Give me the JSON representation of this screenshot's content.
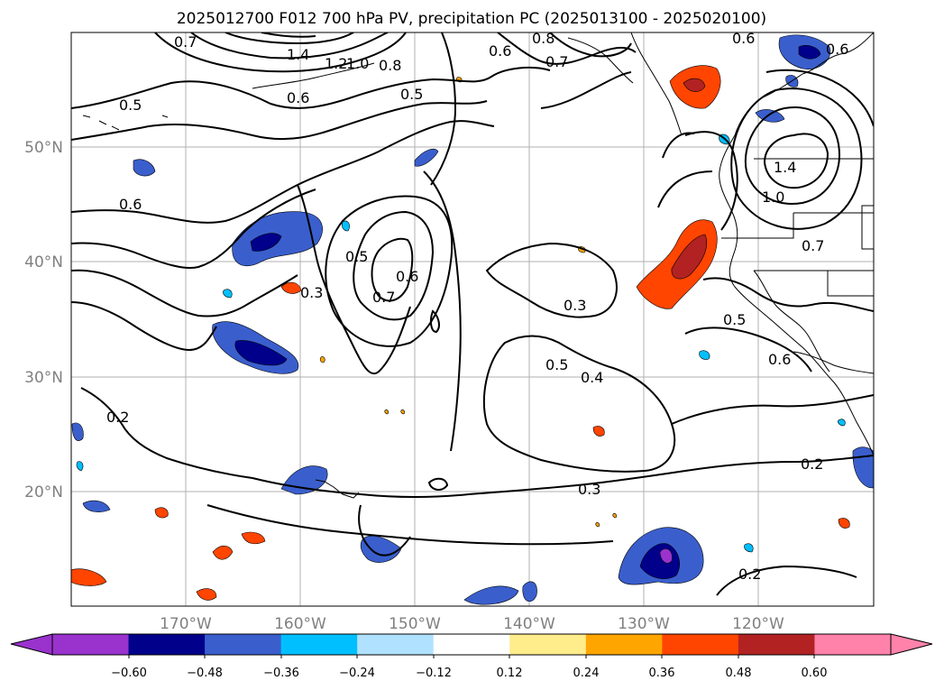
{
  "map": {
    "title": "2025012700 F012 700 hPa PV, precipitation PC (2025013100 - 2025020100)",
    "lon_labels": [
      "170°W",
      "160°W",
      "150°W",
      "140°W",
      "130°W",
      "120°W"
    ],
    "lat_labels": [
      "50°N",
      "40°N",
      "30°N",
      "20°N"
    ],
    "contour_labels": [
      "0.7",
      "1.4",
      "1.2",
      "1.0",
      "0.8",
      "0.6",
      "0.5",
      "0.6",
      "0.8",
      "0.7",
      "0.6",
      "0.6",
      "0.5",
      "0.6",
      "0.3",
      "0.5",
      "0.7",
      "0.6",
      "0.3",
      "0.5",
      "0.4",
      "0.2",
      "0.3",
      "0.5",
      "0.6",
      "1.4",
      "1.0",
      "0.7",
      "0.2",
      "0.2"
    ],
    "colors": {
      "pv_contour": "#000000",
      "grid": "#b0b0b0",
      "coastline": "#000000"
    }
  },
  "colorbar": {
    "ticks": [
      "−0.60",
      "−0.48",
      "−0.36",
      "−0.24",
      "−0.12",
      "0.12",
      "0.24",
      "0.36",
      "0.48",
      "0.60"
    ],
    "colors": [
      "#9a32cd",
      "#00008b",
      "#3a5fcd",
      "#00bfff",
      "#b0e2ff",
      "#ffffff",
      "#ffec8b",
      "#ffa500",
      "#ff4500",
      "#b22222",
      "#ff82ab"
    ]
  }
}
